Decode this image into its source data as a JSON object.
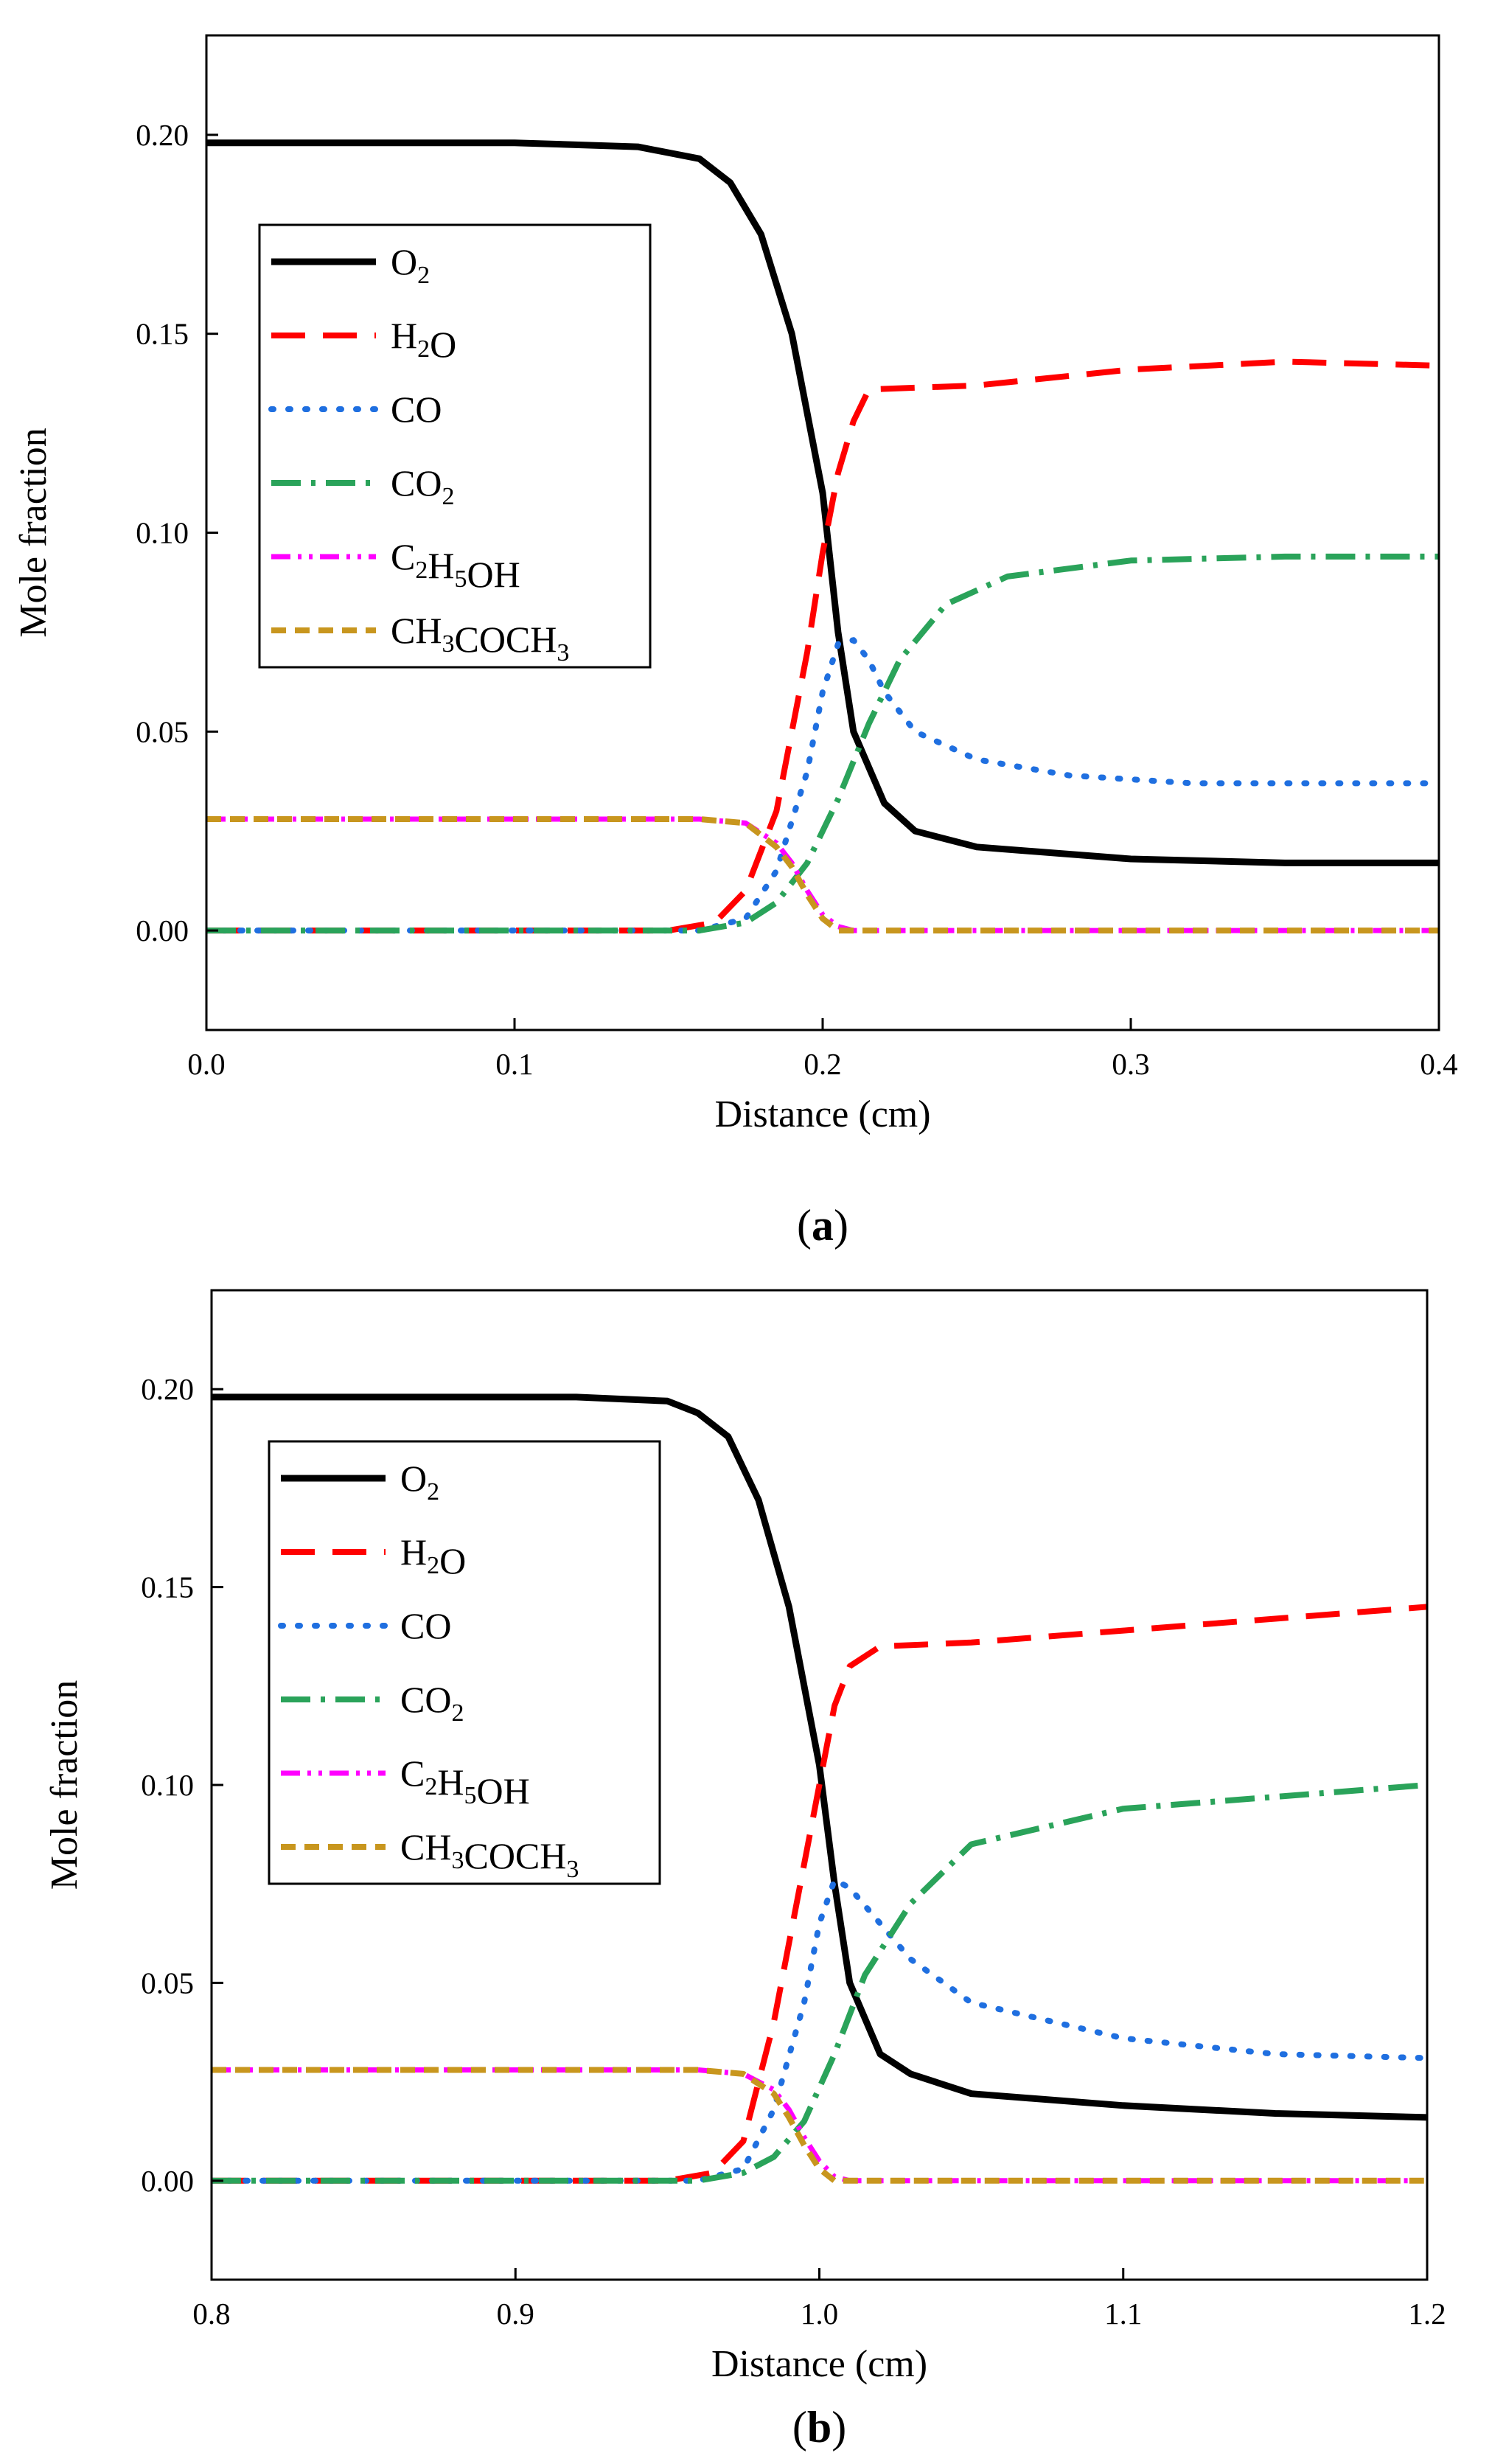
{
  "colors": {
    "O2": "#000000",
    "H2O": "#ff0000",
    "CO": "#1f6fe0",
    "CO2": "#2aa35a",
    "C2H5OH": "#ff00ff",
    "CH3COCH3": "#c8961e"
  },
  "chart_data": [
    {
      "type": "line",
      "panel_label": {
        "open": "(",
        "letter": "a",
        "close": ")"
      },
      "xlabel": "Distance (cm)",
      "ylabel": "Mole fraction",
      "xlim": [
        0.0,
        0.4
      ],
      "ylim": [
        -0.025,
        0.225
      ],
      "xticks": [
        "0.0",
        "0.1",
        "0.2",
        "0.3",
        "0.4"
      ],
      "xtick_values": [
        0.0,
        0.1,
        0.2,
        0.3,
        0.4
      ],
      "yticks": [
        "0.00",
        "0.05",
        "0.10",
        "0.15",
        "0.20"
      ],
      "ytick_values": [
        0.0,
        0.05,
        0.1,
        0.15,
        0.2
      ],
      "legend_position": "upper-left",
      "series": [
        {
          "key": "O2",
          "name": "O",
          "sub": "2",
          "tail": "",
          "style": "solid",
          "points": [
            [
              0.0,
              0.198
            ],
            [
              0.1,
              0.198
            ],
            [
              0.14,
              0.197
            ],
            [
              0.16,
              0.194
            ],
            [
              0.17,
              0.188
            ],
            [
              0.18,
              0.175
            ],
            [
              0.19,
              0.15
            ],
            [
              0.2,
              0.11
            ],
            [
              0.205,
              0.075
            ],
            [
              0.21,
              0.05
            ],
            [
              0.22,
              0.032
            ],
            [
              0.23,
              0.025
            ],
            [
              0.25,
              0.021
            ],
            [
              0.3,
              0.018
            ],
            [
              0.35,
              0.017
            ],
            [
              0.4,
              0.017
            ]
          ]
        },
        {
          "key": "H2O",
          "name": "H",
          "sub": "2",
          "tail": "O",
          "style": "dashed",
          "points": [
            [
              0.0,
              0.0
            ],
            [
              0.15,
              0.0
            ],
            [
              0.165,
              0.002
            ],
            [
              0.175,
              0.01
            ],
            [
              0.185,
              0.03
            ],
            [
              0.195,
              0.07
            ],
            [
              0.2,
              0.095
            ],
            [
              0.205,
              0.115
            ],
            [
              0.21,
              0.128
            ],
            [
              0.215,
              0.136
            ],
            [
              0.25,
              0.137
            ],
            [
              0.3,
              0.141
            ],
            [
              0.35,
              0.143
            ],
            [
              0.4,
              0.142
            ]
          ]
        },
        {
          "key": "CO",
          "name": "CO",
          "sub": "",
          "tail": "",
          "style": "dotted",
          "points": [
            [
              0.0,
              0.0
            ],
            [
              0.16,
              0.0
            ],
            [
              0.175,
              0.003
            ],
            [
              0.185,
              0.015
            ],
            [
              0.195,
              0.04
            ],
            [
              0.2,
              0.06
            ],
            [
              0.205,
              0.072
            ],
            [
              0.21,
              0.073
            ],
            [
              0.215,
              0.068
            ],
            [
              0.22,
              0.06
            ],
            [
              0.23,
              0.05
            ],
            [
              0.25,
              0.043
            ],
            [
              0.28,
              0.039
            ],
            [
              0.32,
              0.037
            ],
            [
              0.4,
              0.037
            ]
          ]
        },
        {
          "key": "CO2",
          "name": "CO",
          "sub": "2",
          "tail": "",
          "style": "dashdot",
          "points": [
            [
              0.0,
              0.0
            ],
            [
              0.16,
              0.0
            ],
            [
              0.175,
              0.002
            ],
            [
              0.185,
              0.007
            ],
            [
              0.195,
              0.017
            ],
            [
              0.205,
              0.033
            ],
            [
              0.215,
              0.052
            ],
            [
              0.225,
              0.068
            ],
            [
              0.24,
              0.082
            ],
            [
              0.26,
              0.089
            ],
            [
              0.3,
              0.093
            ],
            [
              0.35,
              0.094
            ],
            [
              0.4,
              0.094
            ]
          ]
        },
        {
          "key": "C2H5OH",
          "name": "C",
          "sub": "2",
          "tail": "H",
          "sub2": "5",
          "tail2": "OH",
          "style": "dashdotdot",
          "points": [
            [
              0.0,
              0.028
            ],
            [
              0.16,
              0.028
            ],
            [
              0.175,
              0.027
            ],
            [
              0.185,
              0.022
            ],
            [
              0.19,
              0.017
            ],
            [
              0.195,
              0.01
            ],
            [
              0.2,
              0.004
            ],
            [
              0.205,
              0.001
            ],
            [
              0.21,
              0.0
            ],
            [
              0.4,
              0.0
            ]
          ]
        },
        {
          "key": "CH3COCH3",
          "name": "CH",
          "sub": "3",
          "tail": "COCH",
          "sub2": "3",
          "tail2": "",
          "style": "shortdash",
          "points": [
            [
              0.0,
              0.028
            ],
            [
              0.16,
              0.028
            ],
            [
              0.175,
              0.027
            ],
            [
              0.185,
              0.021
            ],
            [
              0.19,
              0.016
            ],
            [
              0.195,
              0.009
            ],
            [
              0.2,
              0.003
            ],
            [
              0.205,
              0.0
            ],
            [
              0.4,
              0.0
            ]
          ]
        }
      ]
    },
    {
      "type": "line",
      "panel_label": {
        "open": "(",
        "letter": "b",
        "close": ")"
      },
      "xlabel": "Distance (cm)",
      "ylabel": "Mole fraction",
      "xlim": [
        0.8,
        1.2
      ],
      "ylim": [
        -0.025,
        0.225
      ],
      "xticks": [
        "0.8",
        "0.9",
        "1.0",
        "1.1",
        "1.2"
      ],
      "xtick_values": [
        0.8,
        0.9,
        1.0,
        1.1,
        1.2
      ],
      "yticks": [
        "0.00",
        "0.05",
        "0.10",
        "0.15",
        "0.20"
      ],
      "ytick_values": [
        0.0,
        0.05,
        0.1,
        0.15,
        0.2
      ],
      "legend_position": "upper-left",
      "series": [
        {
          "key": "O2",
          "name": "O",
          "sub": "2",
          "tail": "",
          "style": "solid",
          "points": [
            [
              0.8,
              0.198
            ],
            [
              0.92,
              0.198
            ],
            [
              0.95,
              0.197
            ],
            [
              0.96,
              0.194
            ],
            [
              0.97,
              0.188
            ],
            [
              0.98,
              0.172
            ],
            [
              0.99,
              0.145
            ],
            [
              1.0,
              0.105
            ],
            [
              1.005,
              0.075
            ],
            [
              1.01,
              0.05
            ],
            [
              1.02,
              0.032
            ],
            [
              1.03,
              0.027
            ],
            [
              1.05,
              0.022
            ],
            [
              1.1,
              0.019
            ],
            [
              1.15,
              0.017
            ],
            [
              1.2,
              0.016
            ]
          ]
        },
        {
          "key": "H2O",
          "name": "H",
          "sub": "2",
          "tail": "O",
          "style": "dashed",
          "points": [
            [
              0.8,
              0.0
            ],
            [
              0.95,
              0.0
            ],
            [
              0.965,
              0.002
            ],
            [
              0.975,
              0.01
            ],
            [
              0.985,
              0.04
            ],
            [
              0.995,
              0.08
            ],
            [
              1.0,
              0.1
            ],
            [
              1.005,
              0.12
            ],
            [
              1.01,
              0.13
            ],
            [
              1.02,
              0.135
            ],
            [
              1.05,
              0.136
            ],
            [
              1.1,
              0.139
            ],
            [
              1.15,
              0.142
            ],
            [
              1.2,
              0.145
            ]
          ]
        },
        {
          "key": "CO",
          "name": "CO",
          "sub": "",
          "tail": "",
          "style": "dotted",
          "points": [
            [
              0.8,
              0.0
            ],
            [
              0.96,
              0.0
            ],
            [
              0.975,
              0.003
            ],
            [
              0.985,
              0.018
            ],
            [
              0.995,
              0.045
            ],
            [
              1.0,
              0.065
            ],
            [
              1.005,
              0.076
            ],
            [
              1.01,
              0.074
            ],
            [
              1.02,
              0.065
            ],
            [
              1.03,
              0.056
            ],
            [
              1.05,
              0.045
            ],
            [
              1.1,
              0.036
            ],
            [
              1.15,
              0.032
            ],
            [
              1.2,
              0.031
            ]
          ]
        },
        {
          "key": "CO2",
          "name": "CO",
          "sub": "2",
          "tail": "",
          "style": "dashdot",
          "points": [
            [
              0.8,
              0.0
            ],
            [
              0.96,
              0.0
            ],
            [
              0.975,
              0.002
            ],
            [
              0.985,
              0.006
            ],
            [
              0.995,
              0.015
            ],
            [
              1.005,
              0.032
            ],
            [
              1.015,
              0.052
            ],
            [
              1.03,
              0.07
            ],
            [
              1.05,
              0.085
            ],
            [
              1.1,
              0.094
            ],
            [
              1.15,
              0.097
            ],
            [
              1.2,
              0.1
            ]
          ]
        },
        {
          "key": "C2H5OH",
          "name": "C",
          "sub": "2",
          "tail": "H",
          "sub2": "5",
          "tail2": "OH",
          "style": "dashdotdot",
          "points": [
            [
              0.8,
              0.028
            ],
            [
              0.96,
              0.028
            ],
            [
              0.975,
              0.027
            ],
            [
              0.985,
              0.023
            ],
            [
              0.99,
              0.018
            ],
            [
              0.995,
              0.011
            ],
            [
              1.0,
              0.005
            ],
            [
              1.005,
              0.001
            ],
            [
              1.01,
              0.0
            ],
            [
              1.2,
              0.0
            ]
          ]
        },
        {
          "key": "CH3COCH3",
          "name": "CH",
          "sub": "3",
          "tail": "COCH",
          "sub2": "3",
          "tail2": "",
          "style": "shortdash",
          "points": [
            [
              0.8,
              0.028
            ],
            [
              0.96,
              0.028
            ],
            [
              0.975,
              0.027
            ],
            [
              0.985,
              0.022
            ],
            [
              0.99,
              0.016
            ],
            [
              0.995,
              0.009
            ],
            [
              1.0,
              0.003
            ],
            [
              1.005,
              0.0
            ],
            [
              1.2,
              0.0
            ]
          ]
        }
      ]
    }
  ]
}
